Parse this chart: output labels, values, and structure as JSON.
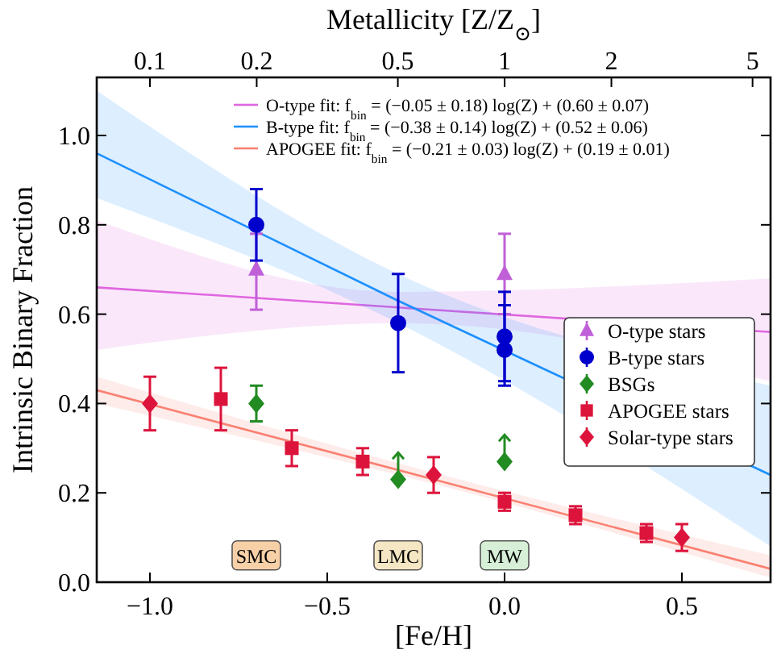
{
  "chart_data": {
    "type": "scatter",
    "xlabel": "[Fe/H]",
    "ylabel": "Intrinsic Binary Fraction",
    "x2label": "Metallicity [Z/Z$_{⊙}$]",
    "xlim": [
      -1.15,
      0.75
    ],
    "xticks": [
      {
        "value": -1,
        "label": "−1.0"
      },
      {
        "value": -0.5,
        "label": "−0.5"
      },
      {
        "value": 0,
        "label": "0.0"
      },
      {
        "value": 0.5,
        "label": "0.5"
      }
    ],
    "ylim": [
      0,
      1.13
    ],
    "yticks": [
      {
        "value": 0,
        "label": "0.0"
      },
      {
        "value": 0.2,
        "label": "0.2"
      },
      {
        "value": 0.4,
        "label": "0.4"
      },
      {
        "value": 0.6,
        "label": "0.6"
      },
      {
        "value": 0.8,
        "label": "0.8"
      },
      {
        "value": 1,
        "label": "1.0"
      }
    ],
    "x2lim": [
      0.0708,
      5.62
    ],
    "x2ticks": [
      0.1,
      0.2,
      0.5,
      1,
      2,
      5
    ],
    "log": "x2",
    "legend": "top right",
    "grid": false,
    "series": [
      {
        "name": "O-type fit: f$_{bin}$ = (−0.05 ± 0.18) log(Z) + (0.60 ± 0.07)",
        "type": "line",
        "color": "#e066e0",
        "x": [
          -1.15,
          -0.3,
          0.75
        ],
        "values": [
          0.66,
          0.615,
          0.56
        ],
        "lower": [
          0.52,
          0.58,
          0.45
        ],
        "upper": [
          0.81,
          0.65,
          0.68
        ]
      },
      {
        "name": "B-type fit: f$_{bin}$ = (−0.38 ± 0.14) log(Z) + (0.52 ± 0.06)",
        "type": "line",
        "color": "#1e90ff",
        "x": [
          -1.15,
          -0.3,
          0.75
        ],
        "values": [
          0.96,
          0.63,
          0.24
        ],
        "lower": [
          0.86,
          0.58,
          0.08
        ],
        "upper": [
          1.1,
          0.69,
          0.44
        ]
      },
      {
        "name": "APOGEE fit: f$_{bin}$ = (−0.21 ± 0.03) log(Z) + (0.19 ± 0.01)",
        "type": "line",
        "color": "#fa8072",
        "x": [
          -1.15,
          -0.2,
          0.75
        ],
        "values": [
          0.43,
          0.23,
          0.03
        ],
        "lower": [
          0.4,
          0.22,
          0.01
        ],
        "upper": [
          0.46,
          0.245,
          0.06
        ]
      },
      {
        "name": "O-type stars",
        "marker": "triangle",
        "color": "#c060d8",
        "x": [
          -0.7,
          0
        ],
        "values": [
          0.7,
          0.69
        ],
        "errors": [
          [
            0.61,
            0.78
          ],
          [
            0.6,
            0.78
          ]
        ]
      },
      {
        "name": "B-type stars",
        "marker": "circle",
        "color": "#0000cc",
        "x": [
          -0.7,
          -0.3,
          0,
          0
        ],
        "values": [
          0.8,
          0.58,
          0.55,
          0.52
        ],
        "errors": [
          [
            0.72,
            0.88
          ],
          [
            0.47,
            0.69
          ],
          [
            0.45,
            0.65
          ],
          [
            0.44,
            0.62
          ]
        ]
      },
      {
        "name": "BSGs",
        "marker": "diamond",
        "color": "#228b22",
        "x": [
          -0.7,
          -0.3,
          0
        ],
        "values": [
          0.4,
          0.23,
          0.27
        ],
        "errors": [
          [
            0.36,
            0.44
          ],
          [
            0.23,
            0.29
          ],
          [
            0.27,
            0.33
          ]
        ]
      },
      {
        "name": "APOGEE stars",
        "marker": "square",
        "color": "#dc143c",
        "x": [
          -0.8,
          -0.6,
          -0.4,
          0,
          0.2,
          0.4
        ],
        "values": [
          0.41,
          0.3,
          0.27,
          0.18,
          0.15,
          0.11
        ],
        "errors": [
          [
            0.34,
            0.48
          ],
          [
            0.26,
            0.34
          ],
          [
            0.24,
            0.3
          ],
          [
            0.16,
            0.2
          ],
          [
            0.13,
            0.17
          ],
          [
            0.09,
            0.13
          ]
        ]
      },
      {
        "name": "Solar-type stars",
        "marker": "diamond",
        "color": "#dc143c",
        "x": [
          -1,
          -0.2,
          0.5
        ],
        "values": [
          0.4,
          0.24,
          0.1
        ],
        "errors": [
          [
            0.34,
            0.46
          ],
          [
            0.2,
            0.28
          ],
          [
            0.07,
            0.13
          ]
        ]
      }
    ],
    "annotations": [
      {
        "text": "SMC",
        "x": -0.7,
        "y": 0.06
      },
      {
        "text": "LMC",
        "x": -0.3,
        "y": 0.06
      },
      {
        "text": "MW",
        "x": 0,
        "y": 0.06
      }
    ]
  }
}
